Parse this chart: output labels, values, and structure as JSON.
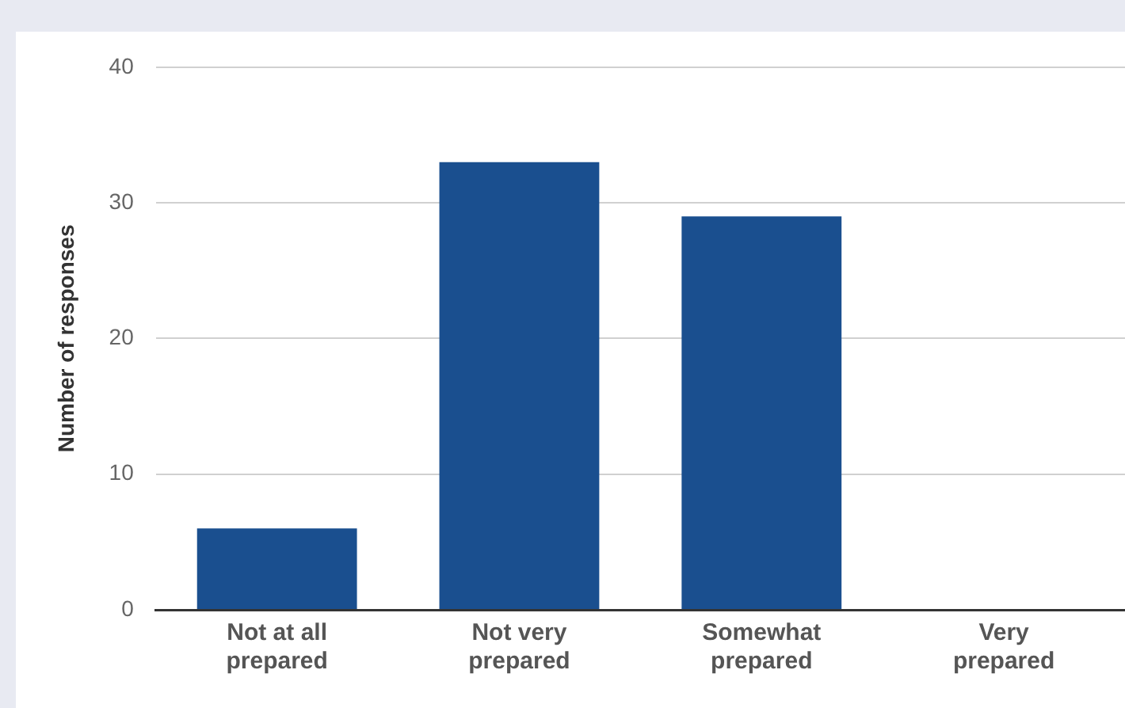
{
  "chart_data": {
    "type": "bar",
    "ylabel": "Number of responses",
    "categories": [
      "Not at all prepared",
      "Not very prepared",
      "Somewhat prepared",
      "Very prepared"
    ],
    "values": [
      6,
      33,
      29,
      0
    ],
    "color": "#1a4f8f",
    "ylim": [
      0,
      40
    ],
    "yticks": [
      0,
      10,
      20,
      30,
      40
    ],
    "grid": "y",
    "legend": false
  }
}
